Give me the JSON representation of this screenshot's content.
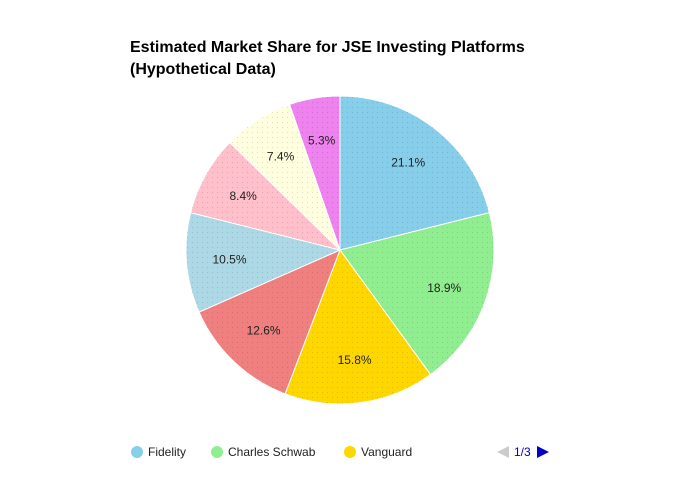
{
  "chart_data": {
    "type": "pie",
    "title": "Estimated Market Share for JSE Investing Platforms (Hypothetical Data)",
    "title_lines": [
      "Estimated Market Share for JSE Investing Platforms",
      "(Hypothetical Data)"
    ],
    "slices": [
      {
        "label": "Fidelity",
        "value": 21.1,
        "display": "21.1%",
        "color": "#87CEEB"
      },
      {
        "label": "Charles Schwab",
        "value": 18.9,
        "display": "18.9%",
        "color": "#90EE90"
      },
      {
        "label": "Vanguard",
        "value": 15.8,
        "display": "15.8%",
        "color": "#FFD700"
      },
      {
        "value": 12.6,
        "display": "12.6%",
        "color": "#F08080"
      },
      {
        "value": 10.5,
        "display": "10.5%",
        "color": "#ADD8E6"
      },
      {
        "value": 8.4,
        "display": "8.4%",
        "color": "#FFC0CB"
      },
      {
        "value": 7.4,
        "display": "7.4%",
        "color": "#FFFFE0"
      },
      {
        "value": 5.3,
        "display": "5.3%",
        "color": "#EE82EE"
      }
    ],
    "legend": {
      "placement": "bottom",
      "entries": [
        "Fidelity",
        "Charles Schwab",
        "Vanguard"
      ]
    },
    "pager": {
      "text": "1/3",
      "prev_enabled": false,
      "next_enabled": true
    }
  },
  "colors": {
    "pager_active": "#0000cc",
    "pager_disabled": "#cccccc"
  }
}
